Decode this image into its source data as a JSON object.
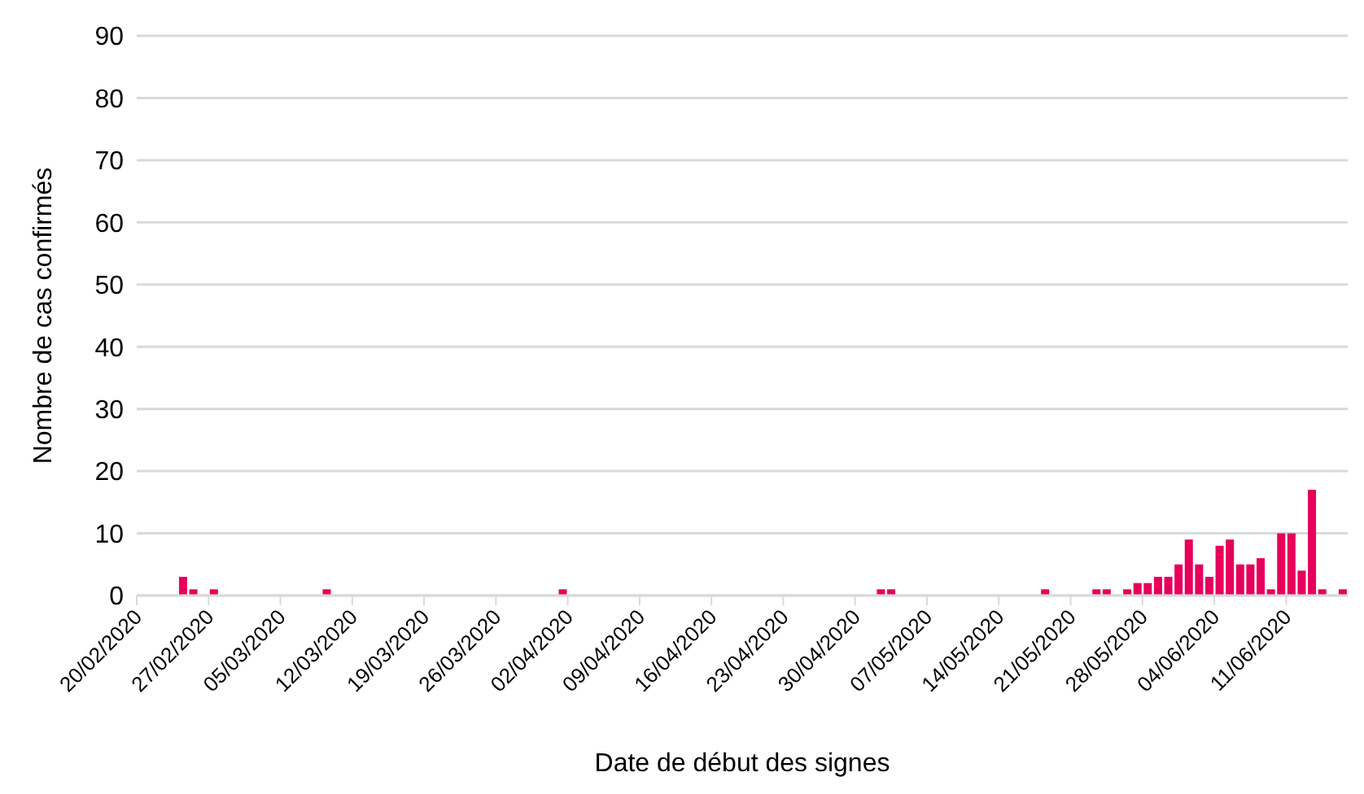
{
  "chart_data": {
    "type": "bar",
    "xlabel": "Date de début des signes",
    "ylabel": "Nombre de cas confirmés",
    "categories": [
      "20/02/2020",
      null,
      null,
      null,
      null,
      null,
      null,
      "27/02/2020",
      null,
      null,
      null,
      null,
      null,
      null,
      "05/03/2020",
      null,
      null,
      null,
      null,
      null,
      null,
      "12/03/2020",
      null,
      null,
      null,
      null,
      null,
      null,
      "19/03/2020",
      null,
      null,
      null,
      null,
      null,
      null,
      "26/03/2020",
      null,
      null,
      null,
      null,
      null,
      null,
      "02/04/2020",
      null,
      null,
      null,
      null,
      null,
      null,
      "09/04/2020",
      null,
      null,
      null,
      null,
      null,
      null,
      "16/04/2020",
      null,
      null,
      null,
      null,
      null,
      null,
      "23/04/2020",
      null,
      null,
      null,
      null,
      null,
      null,
      "30/04/2020",
      null,
      null,
      null,
      null,
      null,
      null,
      "07/05/2020",
      null,
      null,
      null,
      null,
      null,
      null,
      "14/05/2020",
      null,
      null,
      null,
      null,
      null,
      null,
      "21/05/2020",
      null,
      null,
      null,
      null,
      null,
      null,
      "28/05/2020",
      null,
      null,
      null,
      null,
      null,
      null,
      "04/06/2020",
      null,
      null,
      null,
      null,
      null,
      null,
      "11/06/2020",
      null,
      null,
      null,
      null,
      null
    ],
    "values": [
      0,
      0,
      0,
      0,
      3,
      1,
      0,
      1,
      0,
      0,
      0,
      0,
      0,
      0,
      0,
      0,
      0,
      0,
      1,
      0,
      0,
      0,
      0,
      0,
      0,
      0,
      0,
      0,
      0,
      0,
      0,
      0,
      0,
      0,
      0,
      0,
      0,
      0,
      0,
      0,
      0,
      1,
      0,
      0,
      0,
      0,
      0,
      0,
      0,
      0,
      0,
      0,
      0,
      0,
      0,
      0,
      0,
      0,
      0,
      0,
      0,
      0,
      0,
      0,
      0,
      0,
      0,
      0,
      0,
      0,
      0,
      0,
      1,
      1,
      0,
      0,
      0,
      0,
      0,
      0,
      0,
      0,
      0,
      0,
      0,
      0,
      0,
      0,
      1,
      0,
      0,
      0,
      0,
      1,
      1,
      0,
      1,
      2,
      2,
      3,
      3,
      5,
      9,
      5,
      3,
      8,
      9,
      5,
      5,
      6,
      1,
      10,
      10,
      4,
      17,
      1,
      0,
      1
    ],
    "color": "#e6005c",
    "ylim": [
      0,
      90
    ],
    "yticks": [
      0,
      10,
      20,
      30,
      40,
      50,
      60,
      70,
      80,
      90
    ],
    "grid": "y",
    "legend": false
  }
}
